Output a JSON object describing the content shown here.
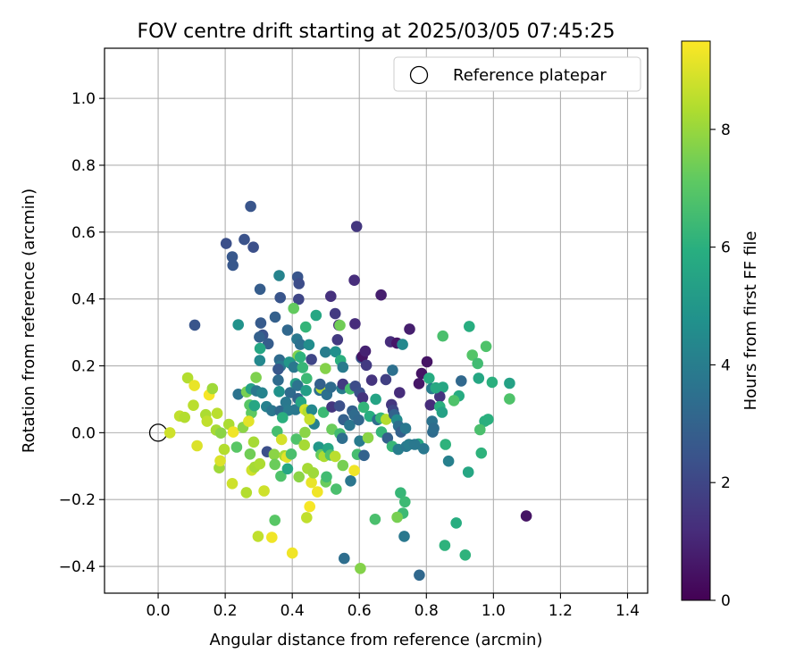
{
  "chart_data": {
    "type": "scatter",
    "title": "FOV centre drift starting at 2025/03/05 07:45:25",
    "xlabel": "Angular distance from reference (arcmin)",
    "ylabel": "Rotation from reference (arcmin)",
    "xlim": [
      -0.16,
      1.46
    ],
    "ylim": [
      -0.48,
      1.15
    ],
    "x_ticks": [
      "0.0",
      "0.2",
      "0.4",
      "0.6",
      "0.8",
      "1.0",
      "1.2",
      "1.4"
    ],
    "y_ticks": [
      "−0.4",
      "−0.2",
      "0.0",
      "0.2",
      "0.4",
      "0.6",
      "0.8",
      "1.0"
    ],
    "grid": true,
    "colormap": "viridis",
    "colorbar": {
      "label": "Hours from first FF file",
      "range": [
        0,
        9.5
      ],
      "ticks": [
        "0",
        "2",
        "4",
        "6",
        "8"
      ]
    },
    "legend": {
      "position": "top-right",
      "entries": [
        "Reference platepar"
      ]
    },
    "reference_point": {
      "x": 0.0,
      "y": 0.0
    },
    "points": [
      [
        0.276,
        0.677,
        2.5
      ],
      [
        0.592,
        0.617,
        1.5
      ],
      [
        0.203,
        0.566,
        2.3
      ],
      [
        0.257,
        0.578,
        2.4
      ],
      [
        0.221,
        0.526,
        2.6
      ],
      [
        0.223,
        0.501,
        2.6
      ],
      [
        0.284,
        0.555,
        2.3
      ],
      [
        0.416,
        0.466,
        2.5
      ],
      [
        0.42,
        0.446,
        2.2
      ],
      [
        0.585,
        0.456,
        1.2
      ],
      [
        0.304,
        0.429,
        2.8
      ],
      [
        0.361,
        0.47,
        4.2
      ],
      [
        0.364,
        0.404,
        2.5
      ],
      [
        0.419,
        0.399,
        2.0
      ],
      [
        0.515,
        0.408,
        1.3
      ],
      [
        0.665,
        0.412,
        0.8
      ],
      [
        0.109,
        0.322,
        2.5
      ],
      [
        0.239,
        0.323,
        4.8
      ],
      [
        0.306,
        0.328,
        2.7
      ],
      [
        0.349,
        0.346,
        2.9
      ],
      [
        0.312,
        0.292,
        2.4
      ],
      [
        0.328,
        0.266,
        2.8
      ],
      [
        0.386,
        0.307,
        3.2
      ],
      [
        0.302,
        0.286,
        2.9
      ],
      [
        0.528,
        0.356,
        1.6
      ],
      [
        0.539,
        0.322,
        1.2
      ],
      [
        0.535,
        0.278,
        1.6
      ],
      [
        0.587,
        0.326,
        1.2
      ],
      [
        0.404,
        0.372,
        7.2
      ],
      [
        0.471,
        0.351,
        5.6
      ],
      [
        0.542,
        0.321,
        7.4
      ],
      [
        0.44,
        0.316,
        6.2
      ],
      [
        0.414,
        0.28,
        3.8
      ],
      [
        0.424,
        0.264,
        3.5
      ],
      [
        0.45,
        0.263,
        4.6
      ],
      [
        0.417,
        0.23,
        7.6
      ],
      [
        0.304,
        0.252,
        5.6
      ],
      [
        0.303,
        0.216,
        4.4
      ],
      [
        0.362,
        0.218,
        3.3
      ],
      [
        0.365,
        0.199,
        3.8
      ],
      [
        0.358,
        0.19,
        2.6
      ],
      [
        0.394,
        0.208,
        3.6
      ],
      [
        0.391,
        0.211,
        5.0
      ],
      [
        0.405,
        0.196,
        3.8
      ],
      [
        0.424,
        0.226,
        6.1
      ],
      [
        0.431,
        0.195,
        6.3
      ],
      [
        0.457,
        0.219,
        2.0
      ],
      [
        0.499,
        0.241,
        4.0
      ],
      [
        0.529,
        0.242,
        4.7
      ],
      [
        0.544,
        0.216,
        6.0
      ],
      [
        0.499,
        0.192,
        7.7
      ],
      [
        0.551,
        0.196,
        3.9
      ],
      [
        0.606,
        0.224,
        2.5
      ],
      [
        0.609,
        0.228,
        0.5
      ],
      [
        0.618,
        0.244,
        0.9
      ],
      [
        0.621,
        0.202,
        1.6
      ],
      [
        0.693,
        0.272,
        1.2
      ],
      [
        0.712,
        0.268,
        0.6
      ],
      [
        0.729,
        0.264,
        4.4
      ],
      [
        0.75,
        0.31,
        0.8
      ],
      [
        0.699,
        0.187,
        3.5
      ],
      [
        0.786,
        0.177,
        0.5
      ],
      [
        0.808,
        0.163,
        5.8
      ],
      [
        0.802,
        0.212,
        0.5
      ],
      [
        0.849,
        0.289,
        6.7
      ],
      [
        0.928,
        0.318,
        5.9
      ],
      [
        0.937,
        0.232,
        6.9
      ],
      [
        0.953,
        0.207,
        6.5
      ],
      [
        0.978,
        0.258,
        6.8
      ],
      [
        0.849,
        0.136,
        5.6
      ],
      [
        0.84,
        0.108,
        1.4
      ],
      [
        0.816,
        0.132,
        4.0
      ],
      [
        0.828,
        0.134,
        5.7
      ],
      [
        0.904,
        0.155,
        3.2
      ],
      [
        0.956,
        0.163,
        5.6
      ],
      [
        0.996,
        0.151,
        6.0
      ],
      [
        1.048,
        0.148,
        5.4
      ],
      [
        0.239,
        0.115,
        3.6
      ],
      [
        0.264,
        0.122,
        7.5
      ],
      [
        0.277,
        0.131,
        5.4
      ],
      [
        0.293,
        0.125,
        3.8
      ],
      [
        0.292,
        0.165,
        7.6
      ],
      [
        0.31,
        0.119,
        4.2
      ],
      [
        0.358,
        0.157,
        3.3
      ],
      [
        0.361,
        0.123,
        4.8
      ],
      [
        0.394,
        0.12,
        3.3
      ],
      [
        0.41,
        0.147,
        5.4
      ],
      [
        0.416,
        0.141,
        3.6
      ],
      [
        0.417,
        0.102,
        3.0
      ],
      [
        0.441,
        0.126,
        5.3
      ],
      [
        0.443,
        0.162,
        6.4
      ],
      [
        0.481,
        0.127,
        3.5
      ],
      [
        0.487,
        0.133,
        8.5
      ],
      [
        0.483,
        0.145,
        2.9
      ],
      [
        0.503,
        0.114,
        3.5
      ],
      [
        0.515,
        0.136,
        3.3
      ],
      [
        0.548,
        0.132,
        3.9
      ],
      [
        0.551,
        0.145,
        1.6
      ],
      [
        0.573,
        0.131,
        6.6
      ],
      [
        0.588,
        0.139,
        2.2
      ],
      [
        0.601,
        0.12,
        2.3
      ],
      [
        0.61,
        0.104,
        1.4
      ],
      [
        0.637,
        0.157,
        1.4
      ],
      [
        0.649,
        0.1,
        5.5
      ],
      [
        0.679,
        0.159,
        1.8
      ],
      [
        0.72,
        0.12,
        1.2
      ],
      [
        0.778,
        0.147,
        0.6
      ],
      [
        0.897,
        0.11,
        5.8
      ],
      [
        0.882,
        0.096,
        6.8
      ],
      [
        0.812,
        0.083,
        1.2
      ],
      [
        0.84,
        0.078,
        6.0
      ],
      [
        0.847,
        0.061,
        5.4
      ],
      [
        0.817,
        0.034,
        3.6
      ],
      [
        0.819,
        0.002,
        3.3
      ],
      [
        0.974,
        0.034,
        6.0
      ],
      [
        0.984,
        0.04,
        6.0
      ],
      [
        0.96,
        0.009,
        6.7
      ],
      [
        1.048,
        0.101,
        6.8
      ],
      [
        0.273,
        0.083,
        7.0
      ],
      [
        0.278,
        0.059,
        7.1
      ],
      [
        0.287,
        0.081,
        5.6
      ],
      [
        0.323,
        0.078,
        4.1
      ],
      [
        0.339,
        0.066,
        3.7
      ],
      [
        0.364,
        0.065,
        3.2
      ],
      [
        0.381,
        0.091,
        3.8
      ],
      [
        0.389,
        0.067,
        3.9
      ],
      [
        0.41,
        0.069,
        3.8
      ],
      [
        0.426,
        0.092,
        5.6
      ],
      [
        0.438,
        0.069,
        8.9
      ],
      [
        0.447,
        0.062,
        8.4
      ],
      [
        0.458,
        0.068,
        4.4
      ],
      [
        0.465,
        0.026,
        4.1
      ],
      [
        0.493,
        0.061,
        6.4
      ],
      [
        0.518,
        0.077,
        1.5
      ],
      [
        0.541,
        0.08,
        2.3
      ],
      [
        0.553,
        0.039,
        2.9
      ],
      [
        0.571,
        0.022,
        3.7
      ],
      [
        0.579,
        0.065,
        2.9
      ],
      [
        0.585,
        0.053,
        3.3
      ],
      [
        0.598,
        0.038,
        3.2
      ],
      [
        0.613,
        0.076,
        6.2
      ],
      [
        0.631,
        0.049,
        5.9
      ],
      [
        0.654,
        0.039,
        3.4
      ],
      [
        0.664,
        0.044,
        6.3
      ],
      [
        0.68,
        0.04,
        8.4
      ],
      [
        0.696,
        0.084,
        1.5
      ],
      [
        0.701,
        0.067,
        2.0
      ],
      [
        0.704,
        0.054,
        3.0
      ],
      [
        0.712,
        0.038,
        4.5
      ],
      [
        0.717,
        0.02,
        3.4
      ],
      [
        0.724,
        0.002,
        2.9
      ],
      [
        0.738,
        0.013,
        3.8
      ],
      [
        0.776,
        -0.034,
        5.7
      ],
      [
        0.822,
        0.013,
        3.4
      ],
      [
        0.857,
        -0.035,
        6.1
      ],
      [
        0.866,
        -0.085,
        4.1
      ],
      [
        0.925,
        -0.118,
        5.6
      ],
      [
        0.964,
        -0.061,
        6.1
      ],
      [
        1.098,
        -0.249,
        0.5
      ],
      [
        0.035,
        0.0,
        8.8
      ],
      [
        0.064,
        0.05,
        8.6
      ],
      [
        0.079,
        0.046,
        8.4
      ],
      [
        0.088,
        0.164,
        8.4
      ],
      [
        0.105,
        0.082,
        8.5
      ],
      [
        0.108,
        0.141,
        9.2
      ],
      [
        0.116,
        -0.039,
        9.0
      ],
      [
        0.142,
        0.054,
        8.3
      ],
      [
        0.146,
        0.034,
        8.6
      ],
      [
        0.152,
        0.113,
        9.4
      ],
      [
        0.162,
        0.132,
        8.1
      ],
      [
        0.176,
        0.058,
        8.5
      ],
      [
        0.173,
        0.008,
        8.2
      ],
      [
        0.187,
        -0.001,
        7.8
      ],
      [
        0.182,
        -0.105,
        8.1
      ],
      [
        0.185,
        -0.084,
        9.0
      ],
      [
        0.197,
        -0.05,
        8.4
      ],
      [
        0.211,
        0.025,
        8.3
      ],
      [
        0.221,
        -0.152,
        8.8
      ],
      [
        0.224,
        0.002,
        9.3
      ],
      [
        0.234,
        -0.043,
        7.0
      ],
      [
        0.253,
        0.016,
        7.8
      ],
      [
        0.263,
        -0.179,
        8.4
      ],
      [
        0.27,
        0.034,
        9.1
      ],
      [
        0.274,
        -0.064,
        7.4
      ],
      [
        0.279,
        -0.112,
        8.8
      ],
      [
        0.288,
        -0.103,
        8.2
      ],
      [
        0.285,
        -0.028,
        8.2
      ],
      [
        0.303,
        -0.093,
        8.3
      ],
      [
        0.316,
        -0.174,
        8.8
      ],
      [
        0.325,
        -0.057,
        2.3
      ],
      [
        0.346,
        -0.065,
        7.8
      ],
      [
        0.348,
        -0.095,
        7.3
      ],
      [
        0.355,
        0.004,
        6.6
      ],
      [
        0.366,
        -0.13,
        6.8
      ],
      [
        0.368,
        -0.02,
        8.9
      ],
      [
        0.371,
        0.045,
        6.0
      ],
      [
        0.377,
        -0.069,
        8.2
      ],
      [
        0.384,
        -0.073,
        9.1
      ],
      [
        0.386,
        -0.108,
        5.6
      ],
      [
        0.397,
        -0.064,
        6.7
      ],
      [
        0.412,
        -0.019,
        6.8
      ],
      [
        0.42,
        -0.132,
        7.8
      ],
      [
        0.436,
        -0.037,
        8.2
      ],
      [
        0.438,
        0.001,
        7.8
      ],
      [
        0.446,
        -0.107,
        8.2
      ],
      [
        0.452,
        0.04,
        8.7
      ],
      [
        0.457,
        -0.149,
        9.2
      ],
      [
        0.463,
        -0.12,
        8.1
      ],
      [
        0.475,
        -0.177,
        9.3
      ],
      [
        0.479,
        -0.043,
        5.0
      ],
      [
        0.486,
        -0.066,
        7.2
      ],
      [
        0.495,
        -0.071,
        8.3
      ],
      [
        0.5,
        -0.147,
        7.3
      ],
      [
        0.502,
        -0.132,
        6.5
      ],
      [
        0.507,
        -0.047,
        5.6
      ],
      [
        0.514,
        -0.067,
        6.8
      ],
      [
        0.518,
        0.01,
        7.3
      ],
      [
        0.528,
        -0.071,
        8.5
      ],
      [
        0.531,
        -0.169,
        6.7
      ],
      [
        0.542,
        -0.003,
        6.5
      ],
      [
        0.549,
        -0.017,
        3.4
      ],
      [
        0.551,
        -0.098,
        7.5
      ],
      [
        0.574,
        -0.144,
        3.7
      ],
      [
        0.585,
        -0.113,
        9.3
      ],
      [
        0.594,
        -0.065,
        6.6
      ],
      [
        0.601,
        -0.025,
        3.9
      ],
      [
        0.614,
        -0.068,
        3.0
      ],
      [
        0.626,
        -0.015,
        7.8
      ],
      [
        0.647,
        -0.259,
        6.7
      ],
      [
        0.666,
        0.002,
        6.2
      ],
      [
        0.684,
        -0.016,
        2.9
      ],
      [
        0.698,
        -0.041,
        6.3
      ],
      [
        0.716,
        -0.05,
        4.0
      ],
      [
        0.723,
        -0.18,
        6.3
      ],
      [
        0.73,
        -0.241,
        6.4
      ],
      [
        0.736,
        -0.207,
        6.4
      ],
      [
        0.74,
        -0.041,
        3.8
      ],
      [
        0.748,
        -0.035,
        4.0
      ],
      [
        0.765,
        -0.035,
        3.8
      ],
      [
        0.792,
        -0.048,
        3.8
      ],
      [
        0.713,
        -0.253,
        7.5
      ],
      [
        0.348,
        -0.262,
        7.0
      ],
      [
        0.298,
        -0.31,
        8.6
      ],
      [
        0.339,
        -0.313,
        9.3
      ],
      [
        0.4,
        -0.36,
        9.3
      ],
      [
        0.443,
        -0.254,
        8.6
      ],
      [
        0.452,
        -0.221,
        9.4
      ],
      [
        0.734,
        -0.31,
        3.8
      ],
      [
        0.555,
        -0.376,
        3.4
      ],
      [
        0.779,
        -0.426,
        3.2
      ],
      [
        0.603,
        -0.406,
        7.7
      ],
      [
        0.855,
        -0.337,
        6.1
      ],
      [
        0.889,
        -0.27,
        5.9
      ],
      [
        0.916,
        -0.366,
        6.1
      ]
    ]
  }
}
